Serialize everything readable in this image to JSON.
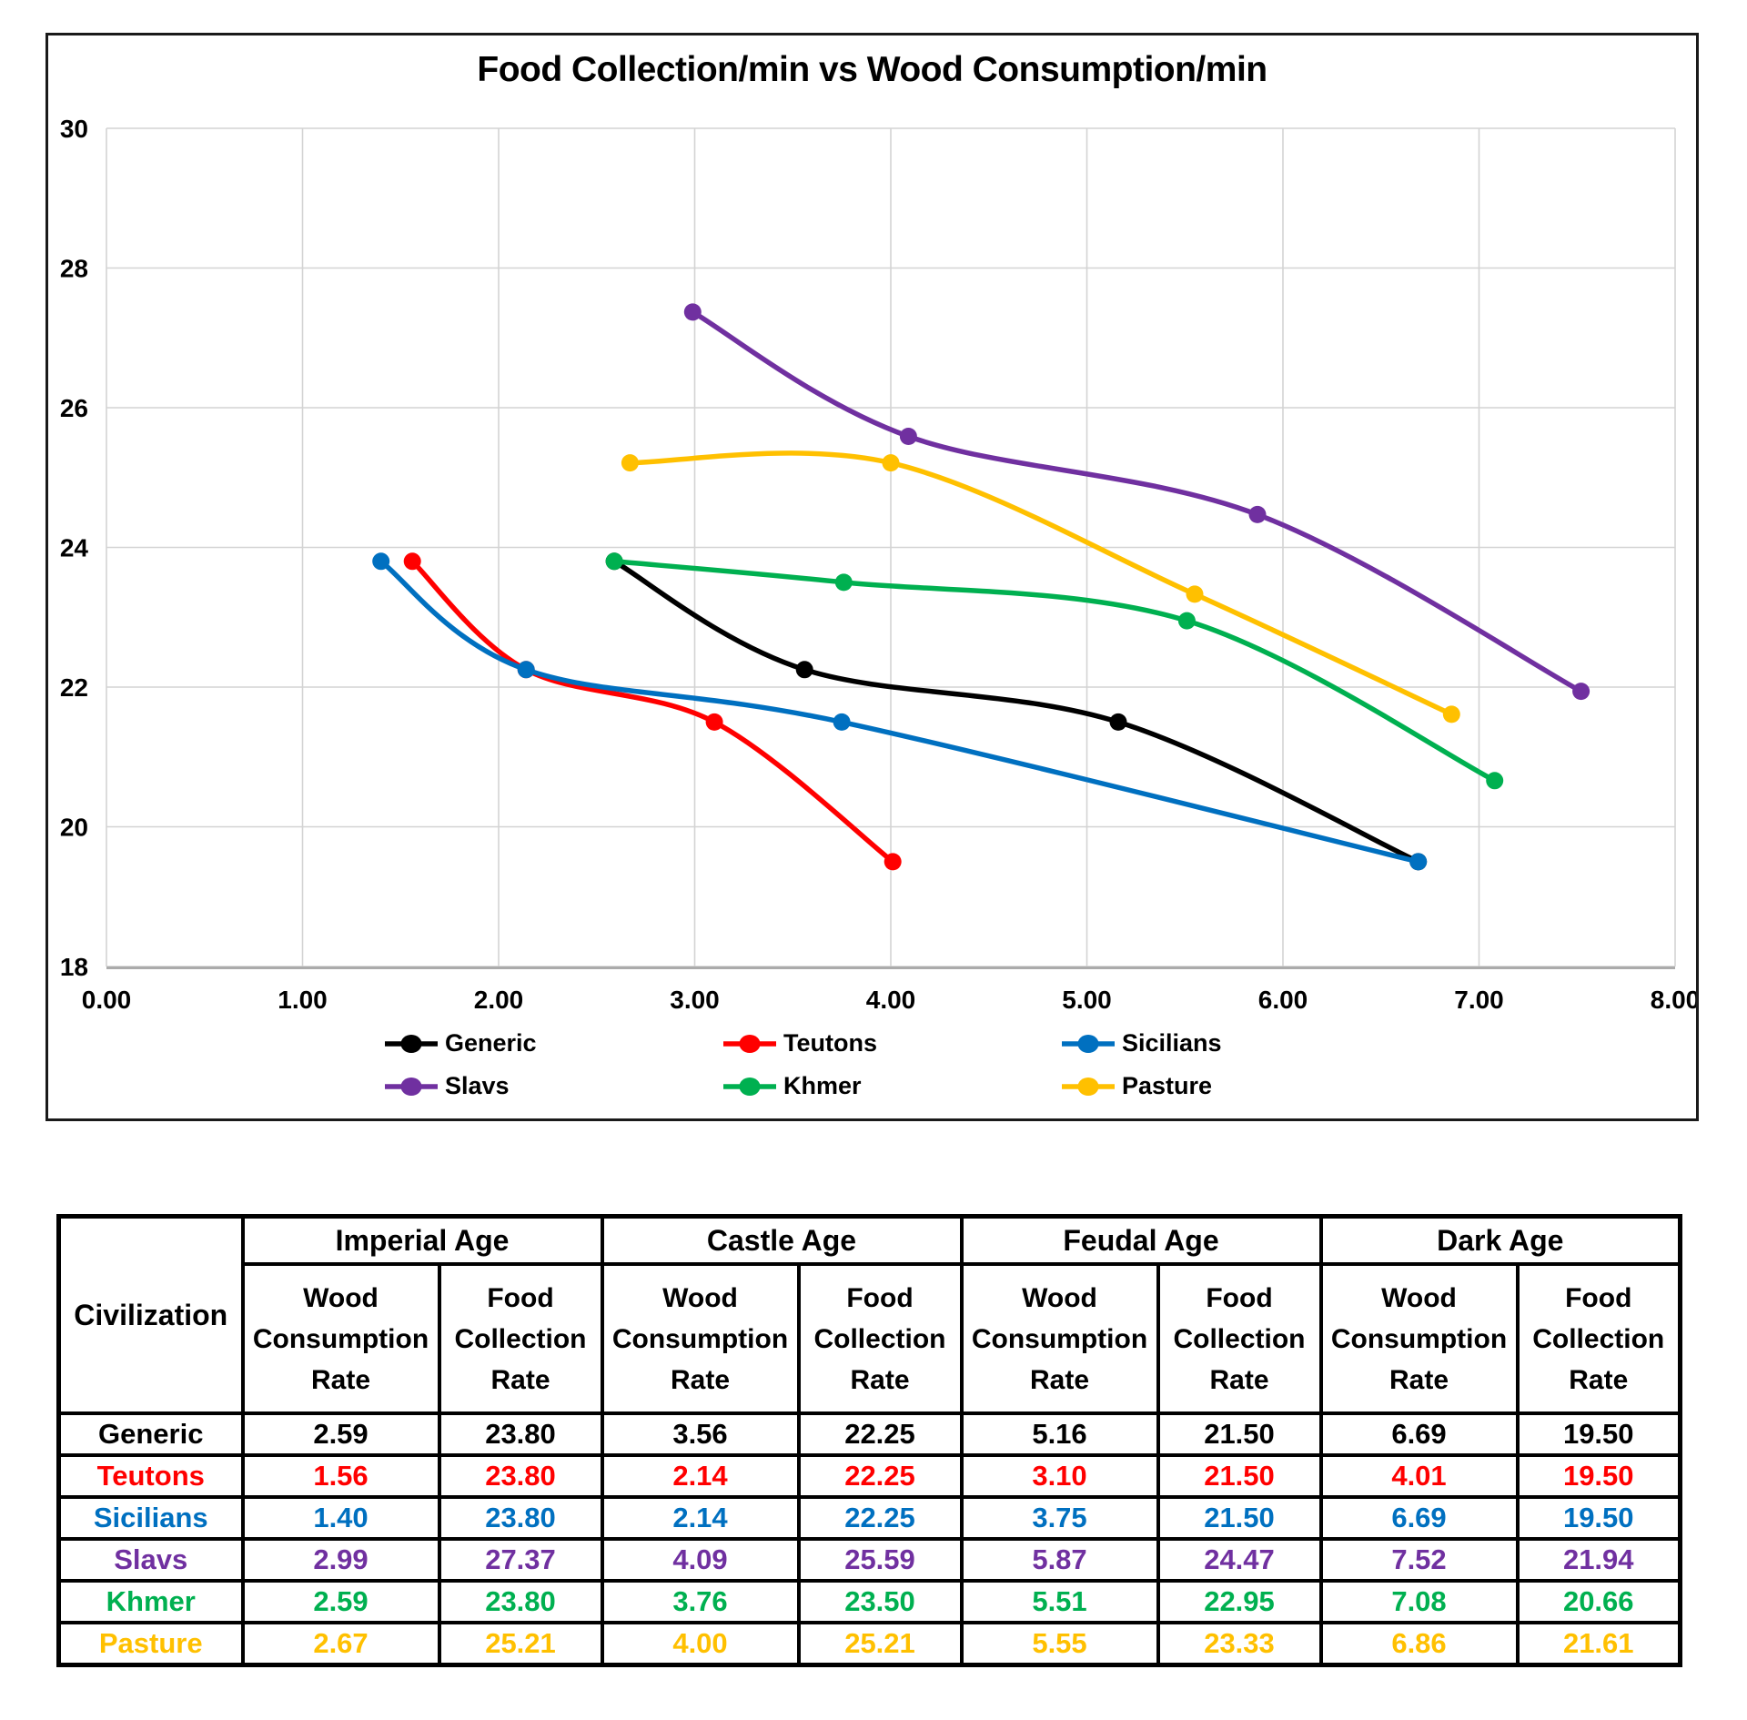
{
  "chart_data": {
    "type": "line",
    "title": "Food Collection/min vs Wood Consumption/min",
    "xlabel": "",
    "ylabel": "",
    "xlim": [
      0,
      8
    ],
    "ylim": [
      18,
      30
    ],
    "x_ticks": [
      "0.00",
      "1.00",
      "2.00",
      "3.00",
      "4.00",
      "5.00",
      "6.00",
      "7.00",
      "8.00"
    ],
    "y_ticks": [
      "18",
      "20",
      "22",
      "24",
      "26",
      "28",
      "30"
    ],
    "grid": true,
    "grid_color": "#D3D3D3",
    "axis_line_color": "#ABABAB",
    "line_style": "smooth",
    "legend_position": "bottom",
    "series": [
      {
        "name": "Generic",
        "color": "#000000",
        "points": [
          [
            2.59,
            23.8
          ],
          [
            3.56,
            22.25
          ],
          [
            5.16,
            21.5
          ],
          [
            6.69,
            19.5
          ]
        ]
      },
      {
        "name": "Teutons",
        "color": "#FF0000",
        "points": [
          [
            1.56,
            23.8
          ],
          [
            2.14,
            22.25
          ],
          [
            3.1,
            21.5
          ],
          [
            4.01,
            19.5
          ]
        ]
      },
      {
        "name": "Sicilians",
        "color": "#0070C0",
        "points": [
          [
            1.4,
            23.8
          ],
          [
            2.14,
            22.25
          ],
          [
            3.75,
            21.5
          ],
          [
            6.69,
            19.5
          ]
        ]
      },
      {
        "name": "Slavs",
        "color": "#7030A0",
        "points": [
          [
            2.99,
            27.37
          ],
          [
            4.09,
            25.59
          ],
          [
            5.87,
            24.47
          ],
          [
            7.52,
            21.94
          ]
        ]
      },
      {
        "name": "Khmer",
        "color": "#00B050",
        "points": [
          [
            2.59,
            23.8
          ],
          [
            3.76,
            23.5
          ],
          [
            5.51,
            22.95
          ],
          [
            7.08,
            20.66
          ]
        ]
      },
      {
        "name": "Pasture",
        "color": "#FFC000",
        "points": [
          [
            2.67,
            25.21
          ],
          [
            4.0,
            25.21
          ],
          [
            5.55,
            23.33
          ],
          [
            6.86,
            21.61
          ]
        ]
      }
    ]
  },
  "table": {
    "civ_header": "Civilization",
    "col_groups": [
      "Imperial Age",
      "Castle Age",
      "Feudal Age",
      "Dark Age"
    ],
    "sub_headers": [
      "Wood Consumption Rate",
      "Food Collection Rate"
    ],
    "rows": [
      {
        "civ": "Generic",
        "color": "#000000",
        "values": [
          "2.59",
          "23.80",
          "3.56",
          "22.25",
          "5.16",
          "21.50",
          "6.69",
          "19.50"
        ]
      },
      {
        "civ": "Teutons",
        "color": "#FF0000",
        "values": [
          "1.56",
          "23.80",
          "2.14",
          "22.25",
          "3.10",
          "21.50",
          "4.01",
          "19.50"
        ]
      },
      {
        "civ": "Sicilians",
        "color": "#0070C0",
        "values": [
          "1.40",
          "23.80",
          "2.14",
          "22.25",
          "3.75",
          "21.50",
          "6.69",
          "19.50"
        ]
      },
      {
        "civ": "Slavs",
        "color": "#7030A0",
        "values": [
          "2.99",
          "27.37",
          "4.09",
          "25.59",
          "5.87",
          "24.47",
          "7.52",
          "21.94"
        ]
      },
      {
        "civ": "Khmer",
        "color": "#00B050",
        "values": [
          "2.59",
          "23.80",
          "3.76",
          "23.50",
          "5.51",
          "22.95",
          "7.08",
          "20.66"
        ]
      },
      {
        "civ": "Pasture",
        "color": "#FFC000",
        "values": [
          "2.67",
          "25.21",
          "4.00",
          "25.21",
          "5.55",
          "23.33",
          "6.86",
          "21.61"
        ]
      }
    ]
  }
}
